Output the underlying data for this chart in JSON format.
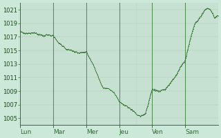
{
  "background_color": "#cce8d8",
  "plot_bg_color": "#cce8d8",
  "line_color": "#2d6e2d",
  "marker_color": "#2d6e2d",
  "ylim": [
    1004,
    1022
  ],
  "yticks": [
    1005,
    1007,
    1009,
    1011,
    1013,
    1015,
    1017,
    1019,
    1021
  ],
  "xlabels": [
    "Lun",
    "Mar",
    "Mer",
    "Jeu",
    "Ven",
    "Sam"
  ],
  "n_days": 6,
  "ylabel_fontsize": 6,
  "xlabel_fontsize": 6.5,
  "vgrid_minor_color": "#b0c8b8",
  "vgrid_major_color": "#4a8a4a",
  "hgrid_color": "#b0c8b8",
  "keypoints_t": [
    0,
    0.15,
    0.4,
    0.7,
    0.9,
    1.0,
    1.15,
    1.4,
    1.6,
    1.8,
    2.0,
    2.2,
    2.5,
    2.7,
    2.85,
    3.0,
    3.15,
    3.3,
    3.45,
    3.55,
    3.65,
    3.8,
    4.0,
    4.2,
    4.4,
    4.6,
    4.75,
    4.85,
    5.0,
    5.1,
    5.2,
    5.3,
    5.4,
    5.5,
    5.6,
    5.7,
    5.8,
    5.9,
    6.0
  ],
  "keypoints_p": [
    1017.8,
    1017.5,
    1017.6,
    1017.2,
    1017.3,
    1017.1,
    1016.2,
    1015.2,
    1014.9,
    1014.6,
    1014.8,
    1013.0,
    1009.5,
    1009.3,
    1008.8,
    1007.5,
    1007.0,
    1006.5,
    1006.0,
    1005.5,
    1005.3,
    1005.7,
    1009.3,
    1009.0,
    1009.3,
    1010.5,
    1011.5,
    1012.5,
    1013.5,
    1015.5,
    1017.5,
    1019.0,
    1019.5,
    1020.2,
    1021.0,
    1021.2,
    1020.8,
    1019.8,
    1020.2
  ]
}
